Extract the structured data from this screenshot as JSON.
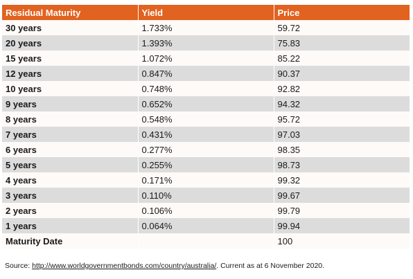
{
  "table": {
    "headers": [
      "Residual Maturity",
      "Yield",
      "Price"
    ],
    "rows": [
      {
        "maturity": "30 years",
        "yield": "1.733%",
        "price": "59.72"
      },
      {
        "maturity": "20 years",
        "yield": "1.393%",
        "price": "75.83"
      },
      {
        "maturity": "15 years",
        "yield": "1.072%",
        "price": "85.22"
      },
      {
        "maturity": "12 years",
        "yield": "0.847%",
        "price": "90.37"
      },
      {
        "maturity": "10 years",
        "yield": "0.748%",
        "price": "92.82"
      },
      {
        "maturity": "9 years",
        "yield": "0.652%",
        "price": "94.32"
      },
      {
        "maturity": "8 years",
        "yield": "0.548%",
        "price": "95.72"
      },
      {
        "maturity": "7 years",
        "yield": "0.431%",
        "price": "97.03"
      },
      {
        "maturity": "6 years",
        "yield": "0.277%",
        "price": "98.35"
      },
      {
        "maturity": "5 years",
        "yield": "0.255%",
        "price": "98.73"
      },
      {
        "maturity": "4 years",
        "yield": "0.171%",
        "price": "99.32"
      },
      {
        "maturity": "3 years",
        "yield": "0.110%",
        "price": "99.67"
      },
      {
        "maturity": "2 years",
        "yield": "0.106%",
        "price": "99.79"
      },
      {
        "maturity": "1 years",
        "yield": "0.064%",
        "price": "99.94"
      },
      {
        "maturity": "Maturity Date",
        "yield": "",
        "price": "100"
      }
    ]
  },
  "source": {
    "prefix": "Source: ",
    "link_text": "http://www.worldgovernmentbonds.com/country/australia/",
    "suffix": ". Current as at 6 November 2020."
  },
  "colors": {
    "header_bg": "#e2621f",
    "header_text": "#ffffff",
    "row_light": "#fdfaf8",
    "row_dark": "#dcdcdc"
  }
}
